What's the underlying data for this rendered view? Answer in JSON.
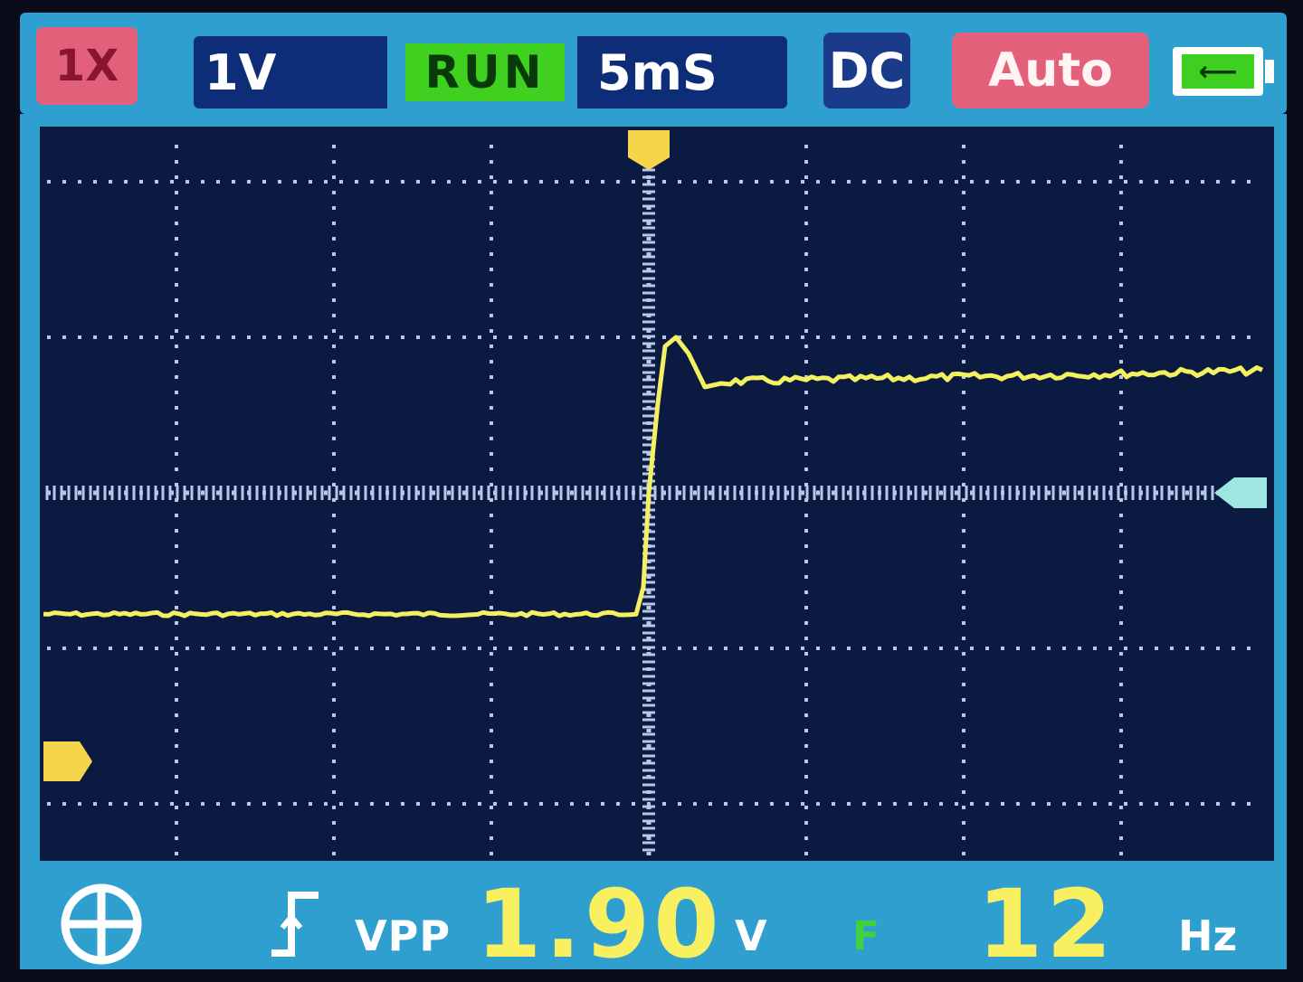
{
  "top_bar": {
    "probe_label": "1X",
    "volts_per_div": "1V",
    "run_state": "RUN",
    "time_per_div": "5mS",
    "coupling": "DC",
    "trigger_mode": "Auto",
    "battery_icon": "battery-charging-icon"
  },
  "colors": {
    "trace": "#f5f060",
    "grid": "#b8c8e8",
    "screen_bg": "#0a1a40",
    "frame": "#2f9fd0",
    "run_green": "#3fd020",
    "pink": "#e2607a"
  },
  "measurements": {
    "cursor_icon": "crosshair-circle-icon",
    "trigger_edge_icon": "rising-edge-icon",
    "vpp_label": "VPP",
    "vpp_value": "1.90",
    "vpp_unit": "V",
    "freq_label": "F",
    "freq_value": "12",
    "freq_unit": "Hz"
  },
  "waveform": {
    "volts_per_div": 1,
    "ms_per_div": 5,
    "low_level_div": -0.78,
    "high_level_div": 0.75,
    "overshoot_div": 1.0,
    "edge_time_div": 0.0
  }
}
